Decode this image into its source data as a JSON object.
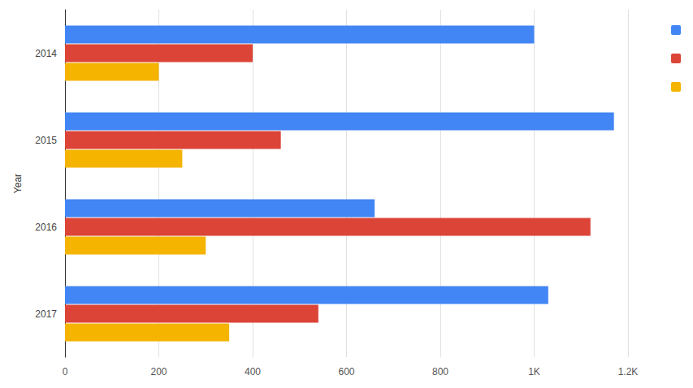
{
  "chart_data": {
    "type": "bar",
    "orientation": "horizontal",
    "categories": [
      "2014",
      "2015",
      "2016",
      "2017"
    ],
    "series": [
      {
        "color": "#4285f4",
        "values": [
          1000,
          1170,
          660,
          1030
        ]
      },
      {
        "color": "#db4437",
        "values": [
          400,
          460,
          1120,
          540
        ]
      },
      {
        "color": "#f4b400",
        "values": [
          200,
          250,
          300,
          350
        ]
      }
    ],
    "xlim": [
      0,
      1200
    ],
    "xticks": [
      0,
      200,
      400,
      600,
      800,
      {
        "value": 1000,
        "label": "1K"
      },
      {
        "value": 1200,
        "label": "1.2K"
      }
    ],
    "y_label": "Year",
    "grid": true,
    "legend": "top-right"
  }
}
